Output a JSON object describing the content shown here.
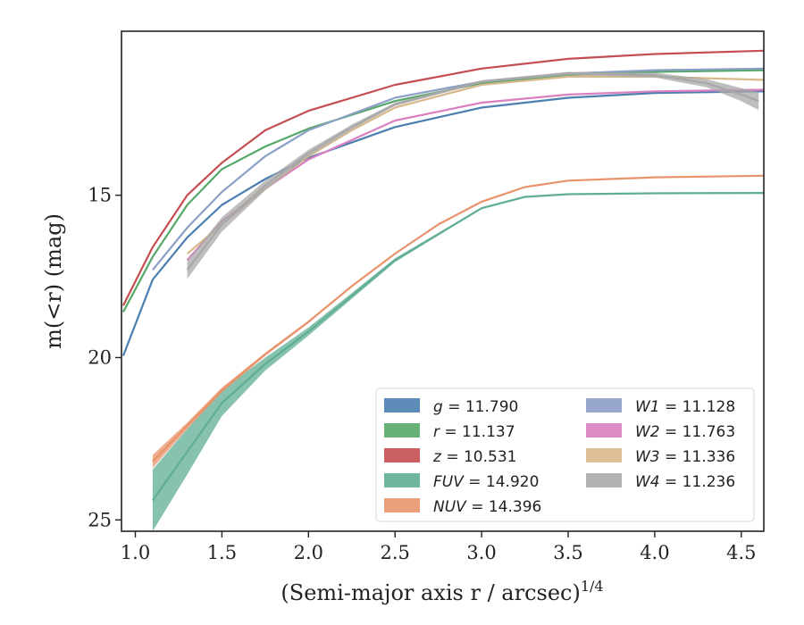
{
  "chart_data": {
    "type": "line",
    "xlabel": "(Semi-major axis r / arcsec)",
    "xlabel_sup": "1/4",
    "ylabel": "m(<r) (mag)",
    "xlim": [
      0.92,
      4.63
    ],
    "ylim": [
      25.35,
      9.95
    ],
    "y_inverted": true,
    "xticks": [
      1.0,
      1.5,
      2.0,
      2.5,
      3.0,
      3.5,
      4.0,
      4.5
    ],
    "xtick_labels": [
      "1.0",
      "1.5",
      "2.0",
      "2.5",
      "3.0",
      "3.5",
      "4.0",
      "4.5"
    ],
    "yticks": [
      15,
      20,
      25
    ],
    "ytick_labels": [
      "15",
      "20",
      "25"
    ],
    "grid": false,
    "legend": {
      "position": "lower-right",
      "columns": 2
    },
    "series": [
      {
        "name": "g = 11.790",
        "band": "g",
        "mag": "11.790",
        "color": "#4c7fb0",
        "x": [
          0.93,
          1.1,
          1.3,
          1.5,
          1.75,
          2.0,
          2.5,
          3.0,
          3.5,
          4.0,
          4.63
        ],
        "y": [
          19.95,
          17.6,
          16.3,
          15.3,
          14.5,
          13.85,
          12.9,
          12.3,
          12.0,
          11.85,
          11.8
        ],
        "band_width": [
          0,
          0,
          0,
          0,
          0,
          0,
          0,
          0,
          0,
          0,
          0
        ]
      },
      {
        "name": "r = 11.137",
        "band": "r",
        "mag": "11.137",
        "color": "#55a868",
        "x": [
          0.93,
          1.1,
          1.3,
          1.5,
          1.75,
          2.0,
          2.5,
          3.0,
          3.5,
          4.0,
          4.63
        ],
        "y": [
          18.6,
          16.9,
          15.3,
          14.2,
          13.5,
          12.95,
          12.1,
          11.55,
          11.3,
          11.2,
          11.15
        ],
        "band_width": [
          0,
          0,
          0,
          0,
          0,
          0,
          0,
          0,
          0,
          0,
          0
        ]
      },
      {
        "name": "z = 10.531",
        "band": "z",
        "mag": "10.531",
        "color": "#c44e52",
        "x": [
          0.93,
          1.1,
          1.3,
          1.5,
          1.75,
          2.0,
          2.5,
          3.0,
          3.5,
          4.0,
          4.63
        ],
        "y": [
          18.4,
          16.6,
          15.0,
          14.0,
          13.0,
          12.4,
          11.6,
          11.1,
          10.8,
          10.65,
          10.55
        ],
        "band_width": [
          0,
          0,
          0,
          0,
          0,
          0,
          0,
          0,
          0,
          0,
          0
        ]
      },
      {
        "name": "FUV = 14.920",
        "band": "FUV",
        "mag": "14.920",
        "color": "#5fae93",
        "x": [
          1.1,
          1.3,
          1.5,
          1.75,
          2.0,
          2.25,
          2.5,
          2.75,
          3.0,
          3.25,
          3.5,
          4.0,
          4.63
        ],
        "y": [
          24.4,
          22.9,
          21.4,
          20.2,
          19.2,
          18.1,
          17.0,
          16.2,
          15.4,
          15.05,
          14.97,
          14.94,
          14.93
        ],
        "band_width": [
          1.9,
          1.4,
          0.8,
          0.4,
          0.25,
          0.18,
          0.12,
          0.08,
          0.05,
          0.03,
          0.0,
          0.0,
          0.0
        ]
      },
      {
        "name": "NUV = 14.396",
        "band": "NUV",
        "mag": "14.396",
        "color": "#e8936b",
        "x": [
          1.1,
          1.3,
          1.5,
          1.75,
          2.0,
          2.25,
          2.5,
          2.75,
          3.0,
          3.25,
          3.5,
          4.0,
          4.63
        ],
        "y": [
          23.2,
          22.1,
          21.0,
          19.9,
          18.9,
          17.8,
          16.8,
          15.9,
          15.2,
          14.75,
          14.55,
          14.45,
          14.4
        ],
        "band_width": [
          0.4,
          0.2,
          0.15,
          0.1,
          0.08,
          0.05,
          0.03,
          0.02,
          0,
          0,
          0,
          0,
          0
        ]
      },
      {
        "name": "W1 = 11.128",
        "band": "W1",
        "mag": "11.128",
        "color": "#8c9fc6",
        "x": [
          1.1,
          1.3,
          1.5,
          1.75,
          2.0,
          2.5,
          3.0,
          3.5,
          4.0,
          4.63
        ],
        "y": [
          17.3,
          16.0,
          14.9,
          13.8,
          13.0,
          12.0,
          11.5,
          11.25,
          11.15,
          11.1
        ],
        "band_width": [
          0,
          0,
          0,
          0,
          0,
          0,
          0,
          0,
          0,
          0
        ]
      },
      {
        "name": "W2 = 11.763",
        "band": "W2",
        "mag": "11.763",
        "color": "#da7fc0",
        "x": [
          1.3,
          1.5,
          1.75,
          2.0,
          2.5,
          3.0,
          3.5,
          4.0,
          4.63
        ],
        "y": [
          17.0,
          15.8,
          14.8,
          13.9,
          12.7,
          12.15,
          11.9,
          11.8,
          11.75
        ],
        "band_width": [
          0,
          0,
          0,
          0,
          0,
          0,
          0,
          0,
          0
        ]
      },
      {
        "name": "W3 = 11.336",
        "band": "W3",
        "mag": "11.336",
        "color": "#d9b98b",
        "x": [
          1.3,
          1.5,
          1.75,
          2.0,
          2.25,
          2.5,
          3.0,
          3.5,
          4.0,
          4.63
        ],
        "y": [
          16.8,
          15.9,
          14.8,
          13.8,
          13.0,
          12.3,
          11.6,
          11.35,
          11.35,
          11.45
        ],
        "band_width": [
          0,
          0,
          0,
          0,
          0,
          0,
          0,
          0,
          0,
          0
        ]
      },
      {
        "name": "W4 = 11.236",
        "band": "W4",
        "mag": "11.236",
        "color": "#a8a8a8",
        "x": [
          1.3,
          1.4,
          1.5,
          1.75,
          2.0,
          2.25,
          2.5,
          3.0,
          3.5,
          4.0,
          4.3,
          4.5,
          4.6
        ],
        "y": [
          17.3,
          16.6,
          15.9,
          14.7,
          13.7,
          12.9,
          12.2,
          11.5,
          11.25,
          11.3,
          11.55,
          11.9,
          12.1
        ],
        "band_width": [
          0.55,
          0.5,
          0.45,
          0.3,
          0.2,
          0.15,
          0.1,
          0.08,
          0.1,
          0.15,
          0.25,
          0.4,
          0.55
        ]
      }
    ]
  }
}
